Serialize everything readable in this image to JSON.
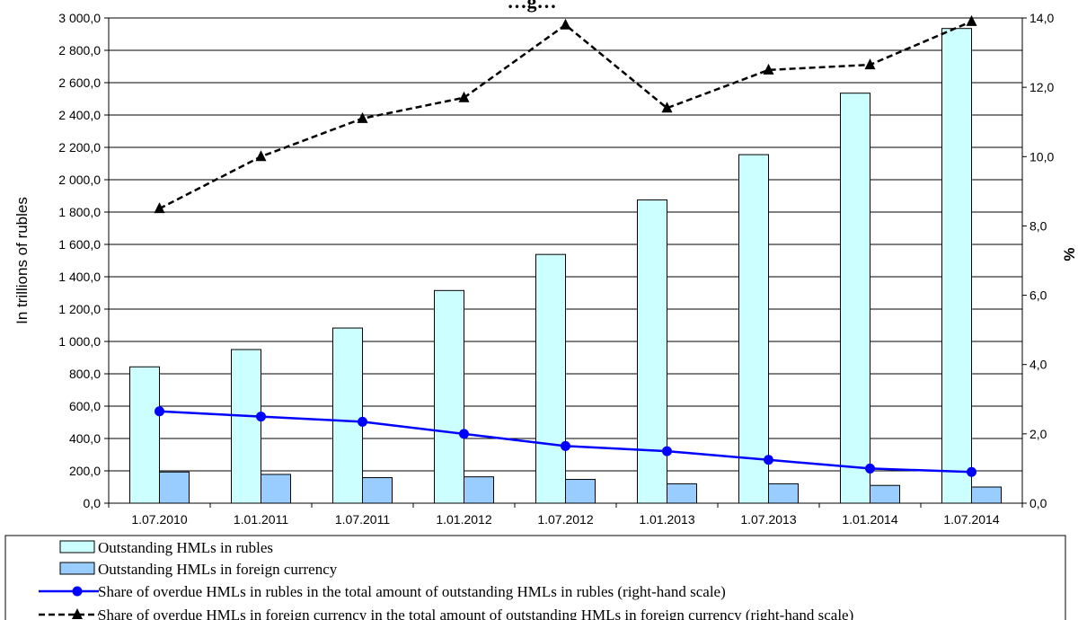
{
  "chart_data": {
    "type": "bar",
    "title": "…g…",
    "categories": [
      "1.07.2010",
      "1.01.2011",
      "1.07.2011",
      "1.01.2012",
      "1.07.2012",
      "1.01.2013",
      "1.07.2013",
      "1.01.2014",
      "1.07.2014"
    ],
    "ylabel": "In trillions of rubles",
    "y2label": "%",
    "ylim": [
      0,
      3000
    ],
    "y2lim": [
      0,
      14
    ],
    "yticks": [
      "0,0",
      "200,0",
      "400,0",
      "600,0",
      "800,0",
      "1 000,0",
      "1 200,0",
      "1 400,0",
      "1 600,0",
      "1 800,0",
      "2 000,0",
      "2 200,0",
      "2 400,0",
      "2 600,0",
      "2 800,0",
      "3 000,0"
    ],
    "y2ticks": [
      "0,0",
      "2,0",
      "4,0",
      "6,0",
      "8,0",
      "10,0",
      "12,0",
      "14,0"
    ],
    "grid": true,
    "series": [
      {
        "name": "Outstanding HMLs in rubles",
        "kind": "bar",
        "axis": "left",
        "color": "#ccffff",
        "values": [
          843,
          950,
          1083,
          1315,
          1538,
          1875,
          2155,
          2535,
          2935
        ]
      },
      {
        "name": "Outstanding HMLs in foreign currency",
        "kind": "bar",
        "axis": "left",
        "color": "#99ccff",
        "values": [
          193,
          178,
          158,
          163,
          147,
          120,
          120,
          110,
          100
        ]
      },
      {
        "name": "Share of overdue HMLs in rubles in the total amount of outstanding HMLs in rubles  (right-hand scale)",
        "kind": "line",
        "axis": "right",
        "color": "#0000ff",
        "marker": "circle",
        "values": [
          2.65,
          2.5,
          2.35,
          2.0,
          1.65,
          1.5,
          1.25,
          1.0,
          0.9
        ]
      },
      {
        "name": "Share of overdue HMLs in foreign currency in the total amount of outstanding HMLs in foreign currency (right-hand scale)",
        "kind": "line",
        "axis": "right",
        "color": "#000000",
        "marker": "triangle",
        "dashed": true,
        "values": [
          8.5,
          10.0,
          11.1,
          11.7,
          13.8,
          11.4,
          12.5,
          12.65,
          13.9
        ]
      }
    ]
  }
}
